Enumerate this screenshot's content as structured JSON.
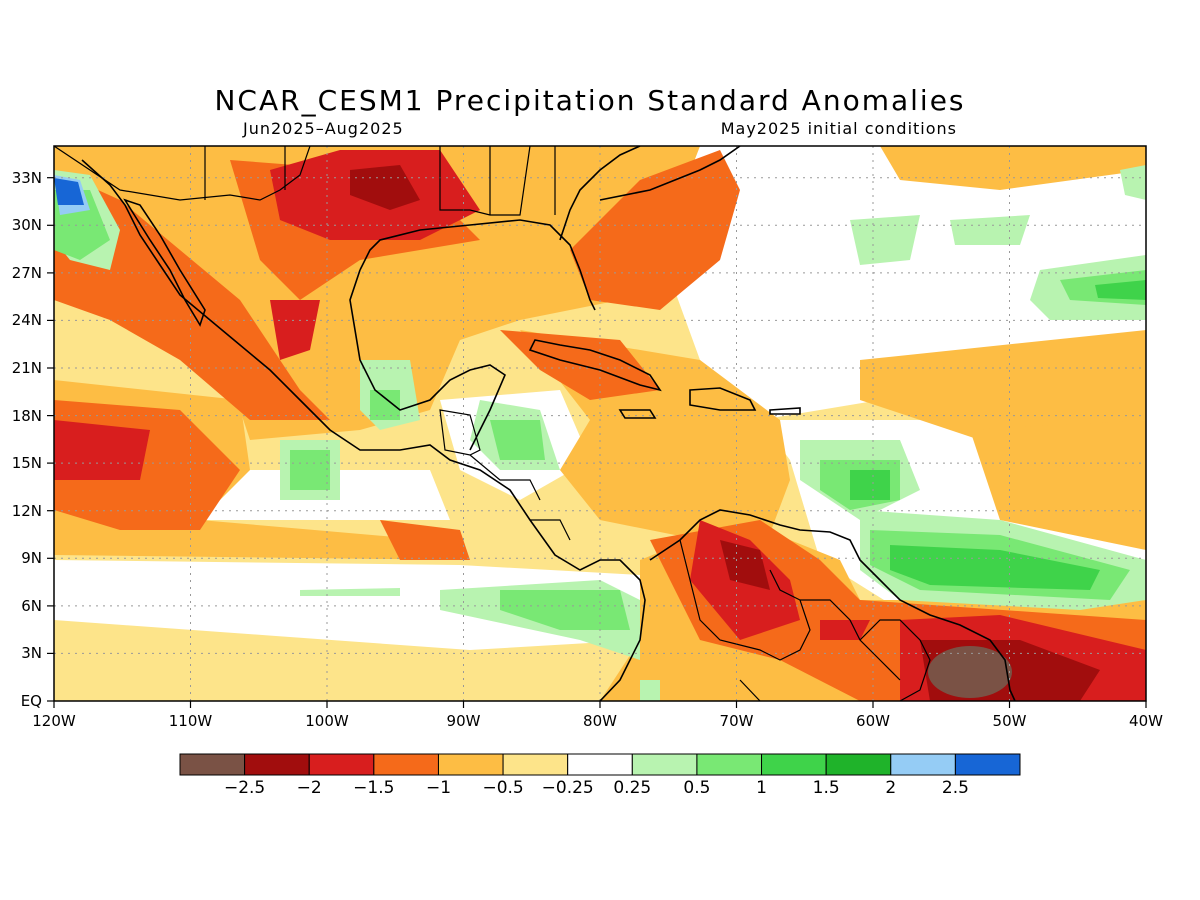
{
  "title": "NCAR_CESM1 Precipitation Standard Anomalies",
  "subtitle_left": "Jun2025–Aug2025",
  "subtitle_right": "May2025 initial conditions",
  "axes": {
    "x_ticks": [
      "120W",
      "110W",
      "100W",
      "90W",
      "80W",
      "70W",
      "60W",
      "50W",
      "40W"
    ],
    "y_ticks": [
      "EQ",
      "3N",
      "6N",
      "9N",
      "12N",
      "15N",
      "18N",
      "21N",
      "24N",
      "27N",
      "30N",
      "33N"
    ],
    "lon_range": [
      -120,
      -40
    ],
    "lat_range": [
      0,
      35
    ],
    "grid": "dotted"
  },
  "colorbar": {
    "colors": [
      "#7a5245",
      "#a10d0d",
      "#d81e1e",
      "#f56a1a",
      "#fdbd44",
      "#fde48a",
      "#ffffff",
      "#b8f3b0",
      "#79e874",
      "#3fd34a",
      "#1fb32a",
      "#95ccf5",
      "#1766d6"
    ],
    "labels": [
      "−2.5",
      "−2",
      "−1.5",
      "−1",
      "−0.5",
      "−0.25",
      "0.25",
      "0.5",
      "1",
      "1.5",
      "2",
      "2.5"
    ]
  }
}
